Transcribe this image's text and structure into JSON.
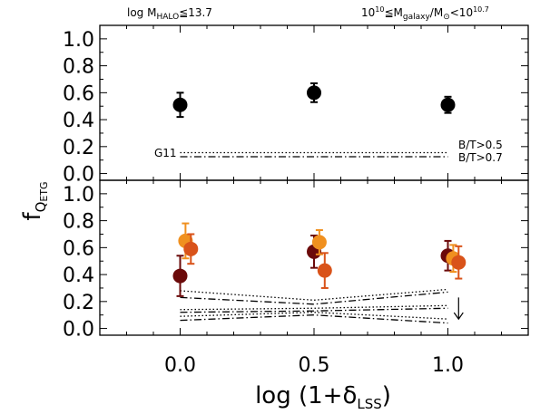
{
  "chart_data": {
    "type": "scatter",
    "header_left": "log M",
    "header_left_sub": "HALO",
    "header_left_rest": "≦13.7",
    "header_right": "10",
    "header_right_sup1": "10",
    "header_right_mid": "≦M",
    "header_right_sub": "galaxy",
    "header_right_mid2": "/M",
    "header_right_sub2": "⊙",
    "header_right_tail": "<10",
    "header_right_sup2": "10.7",
    "ylabel": "f",
    "ylabel_sub": "Q",
    "ylabel_sub2": "ETG",
    "xlabel": "log (1+δ",
    "xlabel_sub": "LSS",
    "xlabel_tail": ")",
    "xlim": [
      -0.3,
      1.3
    ],
    "ylim": [
      -0.05,
      1.1
    ],
    "x_ticks": [
      "0.0",
      "0.5",
      "1.0"
    ],
    "x_tick_values": [
      0.0,
      0.5,
      1.0
    ],
    "y_ticks": [
      "0.0",
      "0.2",
      "0.4",
      "0.6",
      "0.8",
      "1.0"
    ],
    "y_tick_values": [
      0.0,
      0.2,
      0.4,
      0.6,
      0.8,
      1.0
    ],
    "top_panel": {
      "series": [
        {
          "color": "#000000",
          "x": [
            0.0,
            0.5,
            1.0
          ],
          "y": [
            0.51,
            0.6,
            0.51
          ],
          "err": [
            0.09,
            0.07,
            0.06
          ]
        }
      ],
      "lines": [
        {
          "style": "dotted",
          "x": [
            0.0,
            1.0
          ],
          "y": [
            0.155,
            0.155
          ]
        },
        {
          "style": "dashdot",
          "x": [
            0.0,
            1.0
          ],
          "y": [
            0.125,
            0.125
          ]
        }
      ],
      "labels": {
        "g11": "G11",
        "bt05": "B/T>0.5",
        "bt07": "B/T>0.7"
      }
    },
    "bottom_panel": {
      "series": [
        {
          "color": "#6b0a0a",
          "x": [
            0.0,
            0.5,
            1.0
          ],
          "y": [
            0.39,
            0.57,
            0.54
          ],
          "err": [
            0.15,
            0.12,
            0.11
          ]
        },
        {
          "color": "#f0901f",
          "x": [
            0.02,
            0.52,
            1.02
          ],
          "y": [
            0.65,
            0.64,
            0.52
          ],
          "err": [
            0.13,
            0.09,
            0.1
          ]
        },
        {
          "color": "#d9531a",
          "x": [
            0.04,
            0.54,
            1.04
          ],
          "y": [
            0.59,
            0.43,
            0.49
          ],
          "err": [
            0.11,
            0.13,
            0.12
          ]
        }
      ],
      "lines": [
        {
          "style": "dotted",
          "x": [
            0.0,
            0.5,
            1.0
          ],
          "y": [
            0.28,
            0.21,
            0.29
          ]
        },
        {
          "style": "dashdot",
          "x": [
            0.0,
            0.5,
            1.0
          ],
          "y": [
            0.23,
            0.18,
            0.27
          ]
        },
        {
          "style": "dotted",
          "x": [
            0.0,
            0.5,
            1.0
          ],
          "y": [
            0.14,
            0.15,
            0.17
          ]
        },
        {
          "style": "dashdot",
          "x": [
            0.0,
            0.5,
            1.0
          ],
          "y": [
            0.12,
            0.13,
            0.15
          ]
        },
        {
          "style": "dotted",
          "x": [
            0.0,
            0.5,
            1.0
          ],
          "y": [
            0.09,
            0.12,
            0.07
          ]
        },
        {
          "style": "dashdot",
          "x": [
            0.0,
            0.5,
            1.0
          ],
          "y": [
            0.06,
            0.1,
            0.04
          ]
        }
      ],
      "arrow": {
        "x": 1.04,
        "y_top": 0.23,
        "y_bottom": 0.07
      }
    }
  }
}
